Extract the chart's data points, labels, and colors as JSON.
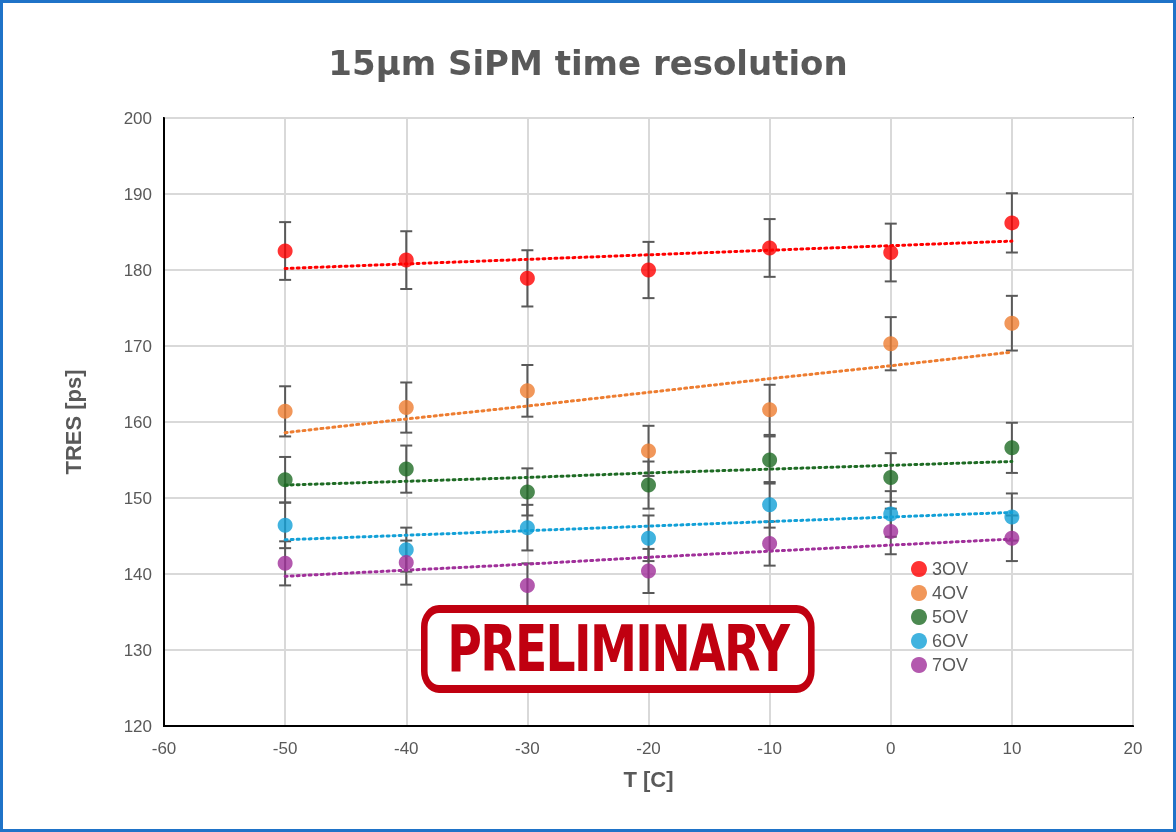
{
  "chart_data": {
    "type": "scatter",
    "title": "15µm SiPM time resolution",
    "xlabel": "T [C]",
    "ylabel": "TRES [ps]",
    "x": [
      -50,
      -40,
      -30,
      -20,
      -10,
      0,
      10
    ],
    "xlim": [
      -60,
      20
    ],
    "xticks": [
      -60,
      -50,
      -40,
      -30,
      -20,
      -10,
      0,
      10,
      20
    ],
    "ylim": [
      120,
      200
    ],
    "yticks": [
      120,
      130,
      140,
      150,
      160,
      170,
      180,
      190,
      200
    ],
    "grid": true,
    "legend": "bottom right",
    "marker": "circle",
    "annotations": [
      "PRELIMINARY"
    ],
    "series": [
      {
        "name": "3OV",
        "color": "#ff0000",
        "values": [
          182.5,
          181.3,
          178.9,
          180.0,
          182.9,
          182.3,
          186.2
        ],
        "errors": [
          3.8,
          3.8,
          3.7,
          3.7,
          3.8,
          3.8,
          3.9
        ]
      },
      {
        "name": "4OV",
        "color": "#ed7d31",
        "values": [
          161.4,
          161.9,
          164.1,
          156.2,
          161.6,
          170.3,
          173.0
        ],
        "errors": [
          3.3,
          3.3,
          3.4,
          3.3,
          3.3,
          3.5,
          3.6
        ]
      },
      {
        "name": "5OV",
        "color": "#1e6b24",
        "values": [
          152.4,
          153.8,
          150.8,
          151.7,
          155.0,
          152.7,
          156.6
        ],
        "errors": [
          3.0,
          3.1,
          3.1,
          3.1,
          3.1,
          3.2,
          3.3
        ]
      },
      {
        "name": "6OV",
        "color": "#12a0d7",
        "values": [
          146.4,
          143.2,
          146.1,
          144.7,
          149.1,
          147.9,
          147.5
        ],
        "errors": [
          3.0,
          2.9,
          3.0,
          3.0,
          3.0,
          3.0,
          3.1
        ]
      },
      {
        "name": "7OV",
        "color": "#a0309a",
        "values": [
          141.4,
          141.5,
          138.5,
          140.4,
          144.0,
          145.6,
          144.7
        ],
        "errors": [
          2.9,
          2.9,
          2.9,
          2.9,
          2.9,
          3.0,
          3.0
        ]
      },
      {
        "type": "line",
        "color": "#ff0000",
        "values": [
          180.2,
          180.8,
          181.4,
          182.0,
          182.6,
          183.2,
          183.8
        ],
        "line_style": "dotted",
        "marker": "none"
      },
      {
        "type": "line",
        "color": "#ed7d31",
        "values": [
          158.6,
          160.4,
          162.1,
          163.9,
          165.7,
          167.4,
          169.2
        ],
        "line_style": "dotted",
        "marker": "none"
      },
      {
        "type": "line",
        "color": "#1e6b24",
        "values": [
          151.7,
          152.2,
          152.7,
          153.3,
          153.8,
          154.3,
          154.8
        ],
        "line_style": "dotted",
        "marker": "none"
      },
      {
        "type": "line",
        "color": "#12a0d7",
        "values": [
          144.5,
          145.1,
          145.7,
          146.3,
          146.9,
          147.5,
          148.1
        ],
        "line_style": "dotted",
        "marker": "none"
      },
      {
        "type": "line",
        "color": "#a0309a",
        "values": [
          139.7,
          140.5,
          141.3,
          142.2,
          143.0,
          143.8,
          144.6
        ],
        "line_style": "dotted",
        "marker": "none"
      }
    ]
  }
}
